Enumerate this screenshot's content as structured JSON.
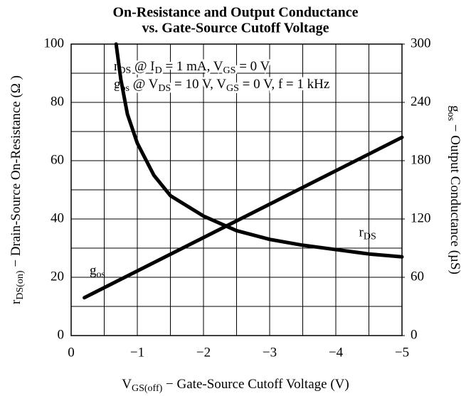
{
  "chart_data": {
    "type": "line",
    "title": [
      "On-Resistance and Output Conductance",
      "vs. Gate-Source Cutoff Voltage"
    ],
    "annotations": [
      [
        "r",
        "DS",
        " @ I",
        "D",
        " = 1 mA, V",
        "GS",
        " = 0 V"
      ],
      [
        "g",
        "os",
        " @ V",
        "DS",
        " = 10 V, V",
        "GS",
        " = 0 V, f = 1 kHz"
      ]
    ],
    "xlabel": [
      "V",
      "GS(off)",
      " − Gate-Source Cutoff Voltage (V)"
    ],
    "ylabel": [
      "r",
      "DS(on)",
      " − Drain-Source On-Resistance (Ω )"
    ],
    "y2label": [
      "g",
      "os",
      " − Output Conductance (µS)"
    ],
    "xlim": [
      0,
      -5
    ],
    "xticks": [
      0,
      {
        "value": -1,
        "label": "−1"
      },
      {
        "value": -2,
        "label": "−2"
      },
      {
        "value": -3,
        "label": "−3"
      },
      {
        "value": -4,
        "label": "−4"
      },
      {
        "value": -5,
        "label": "−5"
      }
    ],
    "xminor": [
      -0.5,
      -1.5,
      -2.5,
      -3.5,
      -4.5
    ],
    "ylim": [
      0,
      100
    ],
    "yticks": [
      0,
      20,
      40,
      60,
      80,
      100
    ],
    "yminor": [
      10,
      30,
      50,
      70,
      90
    ],
    "y2lim": [
      0,
      300
    ],
    "y2ticks": [
      0,
      60,
      120,
      180,
      240,
      300
    ],
    "grid": true,
    "series": [
      {
        "name": [
          "r",
          "DS"
        ],
        "color": "#000000",
        "x": [
          -0.68,
          -0.75,
          -0.85,
          -1,
          -1.25,
          -1.5,
          -2,
          -2.5,
          -3,
          -3.5,
          -4,
          -4.5,
          -5
        ],
        "values": [
          100,
          88,
          76,
          66,
          55,
          48,
          41,
          36,
          33,
          31,
          29.5,
          28,
          27
        ]
      },
      {
        "name": [
          "g",
          "os"
        ],
        "color": "#000000",
        "axis": "y2",
        "x": [
          -0.2,
          -5
        ],
        "values": [
          39,
          204
        ]
      }
    ]
  }
}
